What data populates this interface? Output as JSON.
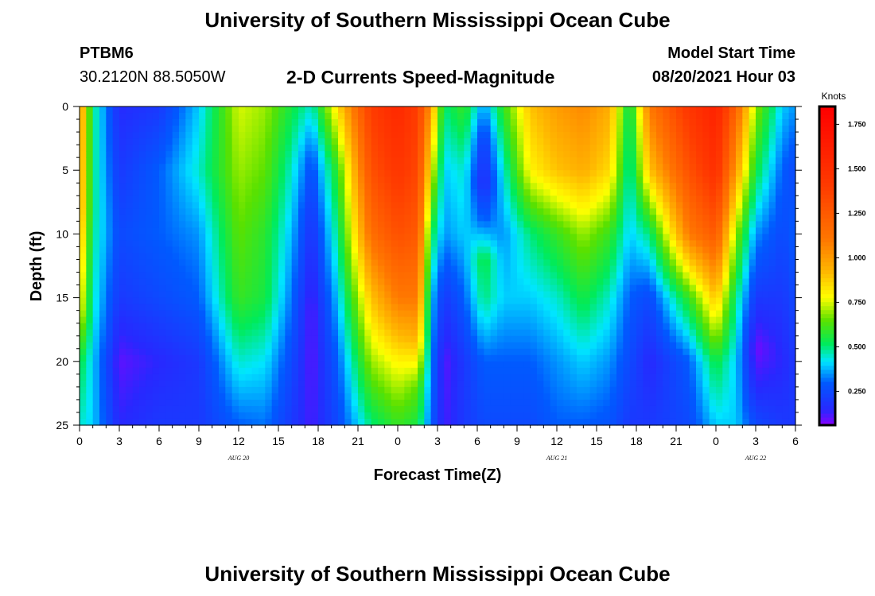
{
  "header": {
    "title": "University of Southern Mississippi Ocean Cube",
    "station": "PTBM6",
    "coordinates": "30.2120N  88.5050W",
    "subtitle": "2-D Currents Speed-Magnitude",
    "model_start_label": "Model Start Time",
    "model_start_value": "08/20/2021 Hour 03"
  },
  "footer": {
    "title": "University of Southern Mississippi Ocean Cube"
  },
  "chart_data": {
    "type": "heatmap",
    "title": "2-D Currents Speed-Magnitude",
    "xlabel": "Forecast Time(Z)",
    "ylabel": "Depth (ft)",
    "x_ticks": [
      "0",
      "3",
      "6",
      "9",
      "12",
      "15",
      "18",
      "21",
      "0",
      "3",
      "6",
      "9",
      "12",
      "15",
      "18",
      "21",
      "0",
      "3",
      "6"
    ],
    "x_range_hours": [
      0,
      54
    ],
    "y_ticks": [
      "0",
      "5",
      "10",
      "15",
      "20",
      "25"
    ],
    "y_range_ft": [
      0,
      25
    ],
    "date_labels": [
      {
        "text": "AUG 20",
        "hour": 12
      },
      {
        "text": "AUG 21",
        "hour": 36
      },
      {
        "text": "AUG 22",
        "hour": 51
      }
    ],
    "colorbar": {
      "unit": "Knots",
      "ticks": [
        "0.250",
        "0.500",
        "0.750",
        "1.000",
        "1.250",
        "1.500",
        "1.750"
      ],
      "min": 0.06,
      "max": 1.85
    },
    "speed_columns_knots": [
      {
        "hour": 0,
        "depth_ft": [
          0,
          8,
          16,
          20,
          25
        ],
        "speed": [
          1.05,
          1.0,
          0.8,
          0.55,
          0.45
        ]
      },
      {
        "hour": 1,
        "depth_ft": [
          0,
          8,
          16,
          20,
          25
        ],
        "speed": [
          0.5,
          0.5,
          0.45,
          0.4,
          0.4
        ]
      },
      {
        "hour": 3,
        "depth_ft": [
          0,
          5,
          10,
          15,
          20,
          25
        ],
        "speed": [
          0.16,
          0.2,
          0.25,
          0.2,
          0.1,
          0.15
        ]
      },
      {
        "hour": 6,
        "depth_ft": [
          0,
          5,
          10,
          15,
          20,
          25
        ],
        "speed": [
          0.2,
          0.3,
          0.3,
          0.25,
          0.15,
          0.2
        ]
      },
      {
        "hour": 9,
        "depth_ft": [
          0,
          5,
          10,
          15,
          20,
          25
        ],
        "speed": [
          0.4,
          0.45,
          0.35,
          0.3,
          0.2,
          0.2
        ]
      },
      {
        "hour": 12,
        "depth_ft": [
          0,
          5,
          10,
          15,
          20,
          25
        ],
        "speed": [
          0.75,
          0.7,
          0.65,
          0.6,
          0.45,
          0.3
        ]
      },
      {
        "hour": 14,
        "depth_ft": [
          0,
          5,
          10,
          15,
          20,
          25
        ],
        "speed": [
          0.7,
          0.65,
          0.58,
          0.55,
          0.42,
          0.32
        ]
      },
      {
        "hour": 16,
        "depth_ft": [
          0,
          5,
          10,
          15,
          20,
          25
        ],
        "speed": [
          0.55,
          0.45,
          0.38,
          0.32,
          0.25,
          0.2
        ]
      },
      {
        "hour": 17.5,
        "depth_ft": [
          0,
          4,
          8,
          12,
          16,
          20,
          25
        ],
        "speed": [
          0.45,
          0.28,
          0.2,
          0.15,
          0.1,
          0.1,
          0.12
        ]
      },
      {
        "hour": 19.5,
        "depth_ft": [
          0,
          5,
          10,
          15,
          20,
          25
        ],
        "speed": [
          0.85,
          0.6,
          0.5,
          0.4,
          0.3,
          0.25
        ]
      },
      {
        "hour": 22,
        "depth_ft": [
          0,
          5,
          10,
          15,
          20,
          25
        ],
        "speed": [
          1.4,
          1.3,
          1.15,
          0.9,
          0.7,
          0.5
        ]
      },
      {
        "hour": 24,
        "depth_ft": [
          0,
          5,
          10,
          15,
          20,
          25
        ],
        "speed": [
          1.55,
          1.45,
          1.3,
          1.1,
          0.8,
          0.6
        ]
      },
      {
        "hour": 25.5,
        "depth_ft": [
          0,
          5,
          10,
          15,
          18,
          20,
          22,
          25
        ],
        "speed": [
          1.4,
          1.35,
          1.25,
          1.1,
          0.95,
          0.8,
          0.65,
          0.55
        ]
      },
      {
        "hour": 26.5,
        "depth_ft": [
          0,
          5,
          10,
          15,
          20,
          25
        ],
        "speed": [
          1.0,
          0.8,
          0.55,
          0.4,
          0.35,
          0.3
        ]
      },
      {
        "hour": 27.5,
        "depth_ft": [
          0,
          5,
          10,
          15,
          20,
          25
        ],
        "speed": [
          0.5,
          0.4,
          0.35,
          0.2,
          0.1,
          0.12
        ]
      },
      {
        "hour": 29,
        "depth_ft": [
          0,
          5,
          10,
          15,
          20,
          25
        ],
        "speed": [
          0.6,
          0.45,
          0.4,
          0.3,
          0.2,
          0.2
        ]
      },
      {
        "hour": 30.5,
        "depth_ft": [
          0,
          3,
          6,
          9,
          12,
          15,
          20,
          25
        ],
        "speed": [
          0.35,
          0.2,
          0.15,
          0.3,
          0.55,
          0.5,
          0.3,
          0.25
        ]
      },
      {
        "hour": 32,
        "depth_ft": [
          0,
          5,
          10,
          15,
          20,
          25
        ],
        "speed": [
          0.6,
          0.45,
          0.35,
          0.4,
          0.3,
          0.25
        ]
      },
      {
        "hour": 34,
        "depth_ft": [
          0,
          5,
          10,
          15,
          20,
          25
        ],
        "speed": [
          0.9,
          0.8,
          0.5,
          0.4,
          0.3,
          0.25
        ]
      },
      {
        "hour": 36,
        "depth_ft": [
          0,
          5,
          10,
          15,
          20,
          25
        ],
        "speed": [
          1.0,
          0.9,
          0.6,
          0.45,
          0.35,
          0.3
        ]
      },
      {
        "hour": 38,
        "depth_ft": [
          0,
          5,
          10,
          15,
          20,
          25
        ],
        "speed": [
          1.05,
          0.95,
          0.7,
          0.55,
          0.4,
          0.3
        ]
      },
      {
        "hour": 40,
        "depth_ft": [
          0,
          5,
          10,
          15,
          20,
          25
        ],
        "speed": [
          0.95,
          0.85,
          0.6,
          0.45,
          0.35,
          0.28
        ]
      },
      {
        "hour": 41.5,
        "depth_ft": [
          0,
          5,
          10,
          15,
          20,
          25
        ],
        "speed": [
          0.5,
          0.45,
          0.4,
          0.3,
          0.25,
          0.2
        ]
      },
      {
        "hour": 43,
        "depth_ft": [
          0,
          5,
          10,
          15,
          20,
          25
        ],
        "speed": [
          1.1,
          0.9,
          0.5,
          0.25,
          0.15,
          0.2
        ]
      },
      {
        "hour": 46,
        "depth_ft": [
          0,
          5,
          10,
          15,
          20,
          25
        ],
        "speed": [
          1.45,
          1.3,
          1.1,
          0.6,
          0.3,
          0.25
        ]
      },
      {
        "hour": 48,
        "depth_ft": [
          0,
          5,
          10,
          15,
          18,
          20,
          25
        ],
        "speed": [
          1.6,
          1.5,
          1.25,
          0.9,
          0.7,
          0.55,
          0.4
        ]
      },
      {
        "hour": 49.5,
        "depth_ft": [
          0,
          5,
          10,
          15,
          20,
          25
        ],
        "speed": [
          1.2,
          1.0,
          0.7,
          0.5,
          0.4,
          0.4
        ]
      },
      {
        "hour": 51,
        "depth_ft": [
          0,
          5,
          10,
          15,
          19,
          22,
          25
        ],
        "speed": [
          0.7,
          0.55,
          0.35,
          0.2,
          0.08,
          0.15,
          0.25
        ]
      },
      {
        "hour": 53,
        "depth_ft": [
          0,
          5,
          10,
          15,
          20,
          25
        ],
        "speed": [
          0.4,
          0.3,
          0.25,
          0.2,
          0.15,
          0.2
        ]
      },
      {
        "hour": 54,
        "depth_ft": [
          0,
          5,
          10,
          15,
          20,
          25
        ],
        "speed": [
          0.35,
          0.25,
          0.3,
          0.25,
          0.2,
          0.2
        ]
      }
    ]
  }
}
